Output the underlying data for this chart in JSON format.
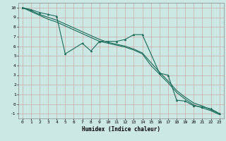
{
  "xlabel": "Humidex (Indice chaleur)",
  "bg_color": "#cce8e4",
  "grid_color": "#b0d8d0",
  "line_color": "#1a6b5a",
  "xlim": [
    -0.5,
    23.5
  ],
  "ylim": [
    -1.5,
    10.5
  ],
  "xticks": [
    0,
    1,
    2,
    3,
    4,
    5,
    6,
    7,
    8,
    9,
    10,
    11,
    12,
    13,
    14,
    15,
    16,
    17,
    18,
    19,
    20,
    21,
    22,
    23
  ],
  "yticks": [
    -1,
    0,
    1,
    2,
    3,
    4,
    5,
    6,
    7,
    8,
    9,
    10
  ],
  "line1_x": [
    0,
    1,
    2,
    3,
    4,
    5,
    7,
    8,
    9,
    10,
    11,
    12,
    13,
    14,
    16,
    17,
    18,
    19,
    20,
    21,
    22,
    23
  ],
  "line1_y": [
    10,
    9.8,
    9.5,
    9.3,
    9.1,
    5.2,
    6.3,
    5.5,
    6.5,
    6.5,
    6.5,
    6.7,
    7.2,
    7.2,
    3.2,
    3.0,
    0.4,
    0.3,
    -0.2,
    -0.3,
    -0.5,
    -1.0
  ],
  "line2_x": [
    0,
    1,
    2,
    3,
    4,
    5,
    6,
    7,
    8,
    9,
    10,
    11,
    12,
    13,
    14,
    15,
    16,
    17,
    18,
    19,
    20,
    21,
    22,
    23
  ],
  "line2_y": [
    10,
    9.7,
    9.3,
    9.0,
    8.7,
    8.3,
    7.9,
    7.5,
    7.1,
    6.7,
    6.4,
    6.2,
    6.0,
    5.7,
    5.3,
    4.3,
    3.3,
    2.4,
    1.4,
    0.7,
    0.1,
    -0.2,
    -0.6,
    -1.0
  ],
  "line3_x": [
    0,
    1,
    2,
    3,
    4,
    5,
    6,
    7,
    8,
    9,
    10,
    11,
    12,
    13,
    14,
    15,
    16,
    17,
    18,
    19,
    20,
    21,
    22,
    23
  ],
  "line3_y": [
    10,
    9.6,
    9.2,
    8.8,
    8.5,
    8.1,
    7.7,
    7.3,
    6.9,
    6.5,
    6.3,
    6.1,
    5.9,
    5.6,
    5.2,
    4.0,
    3.1,
    2.2,
    1.2,
    0.5,
    -0.1,
    -0.4,
    -0.7,
    -1.1
  ]
}
